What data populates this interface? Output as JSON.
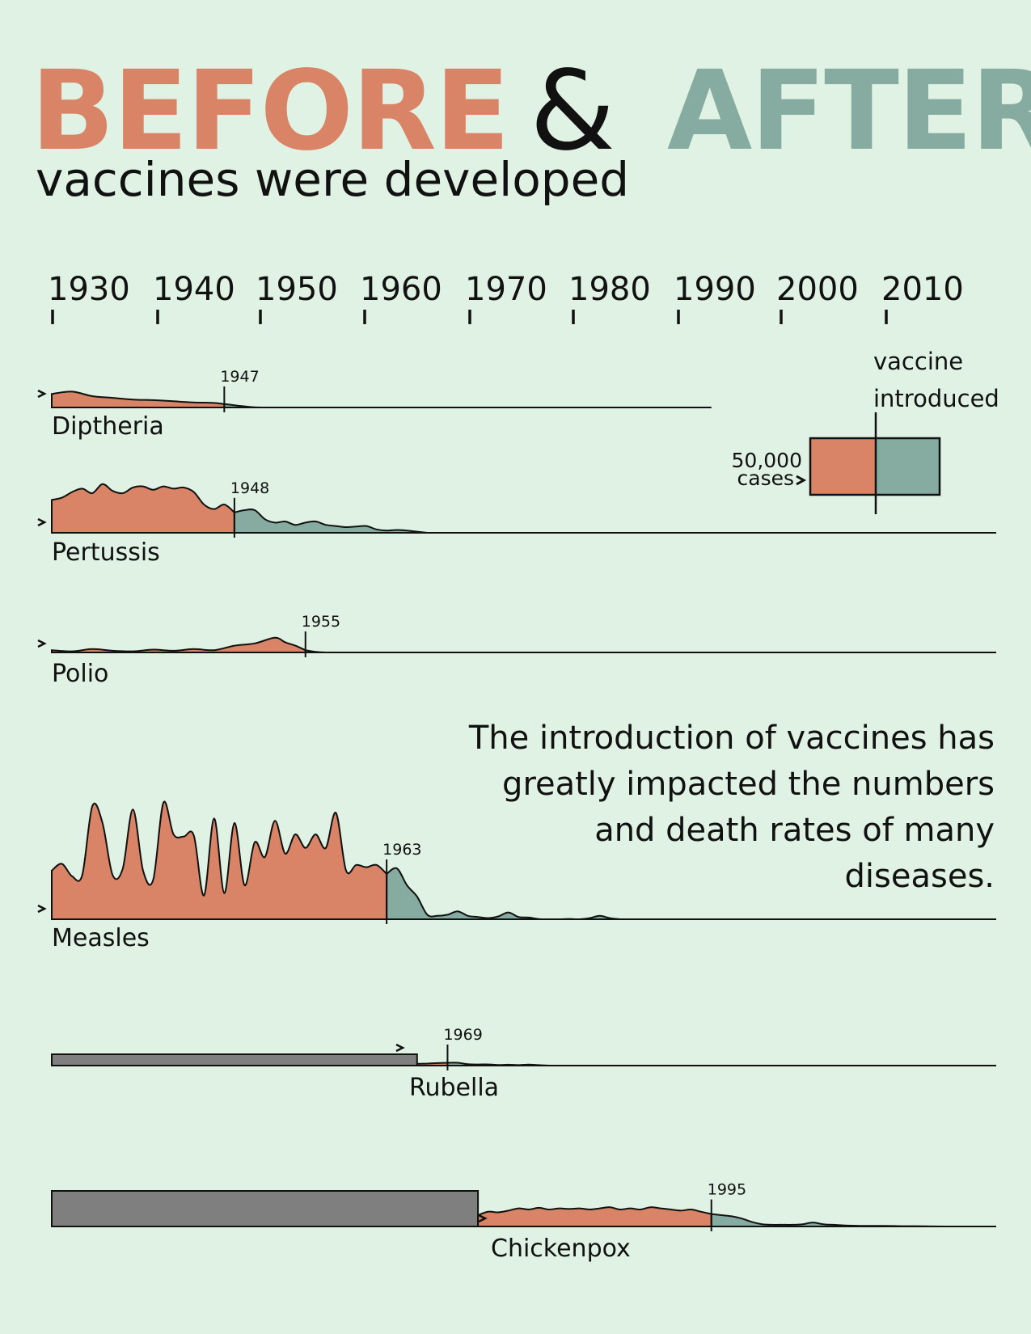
{
  "title": {
    "before": "BEFORE",
    "amp": "&",
    "after": "AFTER",
    "subtitle": "vaccines were developed"
  },
  "note": "The introduction of vaccines has greatly impacted the numbers and death rates of many diseases.",
  "legend": {
    "top_label": "vaccine",
    "bottom_label": "introduced",
    "scale_value": "50,000",
    "scale_unit": "cases"
  },
  "colors": {
    "background": "#e0f2e3",
    "before": "#d98466",
    "after": "#86aba0",
    "unavailable": "#7f7f7f",
    "line": "#111111"
  },
  "chart_data": {
    "type": "area",
    "title": "BEFORE & AFTER vaccines were developed",
    "x_axis": {
      "ticks": [
        1930,
        1940,
        1950,
        1960,
        1970,
        1980,
        1990,
        2000,
        2010
      ],
      "range": [
        1930,
        2021
      ]
    },
    "y_scale": {
      "reference_cases": 50000
    },
    "series": [
      {
        "name": "Diptheria",
        "vaccine_year": 1947,
        "data_start": 1930,
        "line_end": 1995,
        "points": [
          [
            1930,
            12000
          ],
          [
            1932,
            14000
          ],
          [
            1934,
            10000
          ],
          [
            1936,
            8500
          ],
          [
            1938,
            7000
          ],
          [
            1940,
            6500
          ],
          [
            1942,
            5500
          ],
          [
            1944,
            4500
          ],
          [
            1946,
            4000
          ],
          [
            1947,
            3000
          ],
          [
            1948,
            2000
          ],
          [
            1949,
            1000
          ],
          [
            1950,
            200
          ],
          [
            1952,
            0
          ]
        ]
      },
      {
        "name": "Pertussis",
        "vaccine_year": 1948,
        "data_start": 1930,
        "points": [
          [
            1930,
            29000
          ],
          [
            1931,
            31000
          ],
          [
            1932,
            36000
          ],
          [
            1933,
            39000
          ],
          [
            1934,
            35000
          ],
          [
            1935,
            43000
          ],
          [
            1936,
            37000
          ],
          [
            1937,
            35000
          ],
          [
            1938,
            40000
          ],
          [
            1939,
            41000
          ],
          [
            1940,
            38000
          ],
          [
            1941,
            41000
          ],
          [
            1942,
            39000
          ],
          [
            1943,
            40000
          ],
          [
            1944,
            36000
          ],
          [
            1945,
            25000
          ],
          [
            1946,
            21000
          ],
          [
            1947,
            25000
          ],
          [
            1948,
            18000
          ],
          [
            1949,
            20000
          ],
          [
            1950,
            20000
          ],
          [
            1951,
            12000
          ],
          [
            1952,
            9000
          ],
          [
            1953,
            10000
          ],
          [
            1954,
            7000
          ],
          [
            1955,
            9000
          ],
          [
            1956,
            10000
          ],
          [
            1957,
            7000
          ],
          [
            1958,
            6000
          ],
          [
            1959,
            5000
          ],
          [
            1960,
            5500
          ],
          [
            1961,
            6000
          ],
          [
            1962,
            3000
          ],
          [
            1963,
            2000
          ],
          [
            1964,
            2500
          ],
          [
            1965,
            2000
          ],
          [
            1966,
            1000
          ],
          [
            1967,
            0
          ]
        ]
      },
      {
        "name": "Polio",
        "vaccine_year": 1955,
        "data_start": 1930,
        "points": [
          [
            1930,
            2000
          ],
          [
            1932,
            1000
          ],
          [
            1934,
            3000
          ],
          [
            1936,
            1500
          ],
          [
            1938,
            1000
          ],
          [
            1940,
            2500
          ],
          [
            1942,
            1500
          ],
          [
            1944,
            3000
          ],
          [
            1946,
            2000
          ],
          [
            1948,
            6000
          ],
          [
            1950,
            8000
          ],
          [
            1952,
            13000
          ],
          [
            1953,
            9000
          ],
          [
            1954,
            6000
          ],
          [
            1955,
            2000
          ],
          [
            1956,
            500
          ],
          [
            1957,
            0
          ]
        ]
      },
      {
        "name": "Measles",
        "vaccine_year": 1963,
        "data_start": 1930,
        "points": [
          [
            1930,
            43000
          ],
          [
            1931,
            49000
          ],
          [
            1932,
            38000
          ],
          [
            1933,
            39000
          ],
          [
            1934,
            100000
          ],
          [
            1935,
            85000
          ],
          [
            1936,
            39000
          ],
          [
            1937,
            45000
          ],
          [
            1938,
            97000
          ],
          [
            1939,
            43000
          ],
          [
            1940,
            35000
          ],
          [
            1941,
            103000
          ],
          [
            1942,
            75000
          ],
          [
            1943,
            73000
          ],
          [
            1944,
            74000
          ],
          [
            1945,
            21000
          ],
          [
            1946,
            89000
          ],
          [
            1947,
            23000
          ],
          [
            1948,
            85000
          ],
          [
            1949,
            30000
          ],
          [
            1950,
            68000
          ],
          [
            1951,
            55000
          ],
          [
            1952,
            87000
          ],
          [
            1953,
            58000
          ],
          [
            1954,
            75000
          ],
          [
            1955,
            63000
          ],
          [
            1956,
            75000
          ],
          [
            1957,
            63000
          ],
          [
            1958,
            94000
          ],
          [
            1959,
            43000
          ],
          [
            1960,
            48000
          ],
          [
            1961,
            46000
          ],
          [
            1962,
            48000
          ],
          [
            1963,
            40000
          ],
          [
            1964,
            45000
          ],
          [
            1965,
            30000
          ],
          [
            1966,
            20000
          ],
          [
            1967,
            4000
          ],
          [
            1968,
            3000
          ],
          [
            1969,
            4000
          ],
          [
            1970,
            7000
          ],
          [
            1971,
            3000
          ],
          [
            1972,
            2000
          ],
          [
            1973,
            1000
          ],
          [
            1974,
            2500
          ],
          [
            1975,
            6000
          ],
          [
            1976,
            2000
          ],
          [
            1977,
            1500
          ],
          [
            1978,
            200
          ],
          [
            1979,
            0
          ],
          [
            1980,
            0
          ],
          [
            1981,
            300
          ],
          [
            1982,
            0
          ],
          [
            1983,
            1000
          ],
          [
            1984,
            3000
          ],
          [
            1985,
            1000
          ],
          [
            1986,
            0
          ]
        ]
      },
      {
        "name": "Rubella",
        "vaccine_year": 1969,
        "data_start": 1966,
        "points": [
          [
            1966,
            1600
          ],
          [
            1967,
            1800
          ],
          [
            1968,
            2200
          ],
          [
            1969,
            2500
          ],
          [
            1970,
            2500
          ],
          [
            1971,
            1200
          ],
          [
            1972,
            1000
          ],
          [
            1973,
            1100
          ],
          [
            1974,
            500
          ],
          [
            1975,
            800
          ],
          [
            1976,
            400
          ],
          [
            1977,
            900
          ],
          [
            1978,
            400
          ],
          [
            1979,
            0
          ]
        ]
      },
      {
        "name": "Chickenpox",
        "vaccine_year": 1995,
        "data_start": 1972,
        "points": [
          [
            1972,
            10000
          ],
          [
            1973,
            13000
          ],
          [
            1974,
            12500
          ],
          [
            1975,
            14000
          ],
          [
            1976,
            16000
          ],
          [
            1977,
            15000
          ],
          [
            1978,
            16500
          ],
          [
            1979,
            15000
          ],
          [
            1980,
            16000
          ],
          [
            1981,
            15500
          ],
          [
            1982,
            16000
          ],
          [
            1983,
            15000
          ],
          [
            1984,
            16000
          ],
          [
            1985,
            17000
          ],
          [
            1986,
            15000
          ],
          [
            1987,
            16000
          ],
          [
            1988,
            15000
          ],
          [
            1989,
            17000
          ],
          [
            1990,
            16000
          ],
          [
            1991,
            15000
          ],
          [
            1992,
            14000
          ],
          [
            1993,
            15000
          ],
          [
            1994,
            13000
          ],
          [
            1995,
            11000
          ],
          [
            1996,
            10000
          ],
          [
            1997,
            9000
          ],
          [
            1998,
            7000
          ],
          [
            1999,
            4000
          ],
          [
            2000,
            2000
          ],
          [
            2001,
            1500
          ],
          [
            2002,
            1500
          ],
          [
            2003,
            1500
          ],
          [
            2004,
            2000
          ],
          [
            2005,
            3500
          ],
          [
            2006,
            2000
          ],
          [
            2007,
            1500
          ],
          [
            2008,
            1000
          ],
          [
            2009,
            700
          ],
          [
            2010,
            500
          ],
          [
            2012,
            500
          ],
          [
            2014,
            300
          ],
          [
            2016,
            200
          ],
          [
            2018,
            0
          ]
        ]
      }
    ]
  }
}
